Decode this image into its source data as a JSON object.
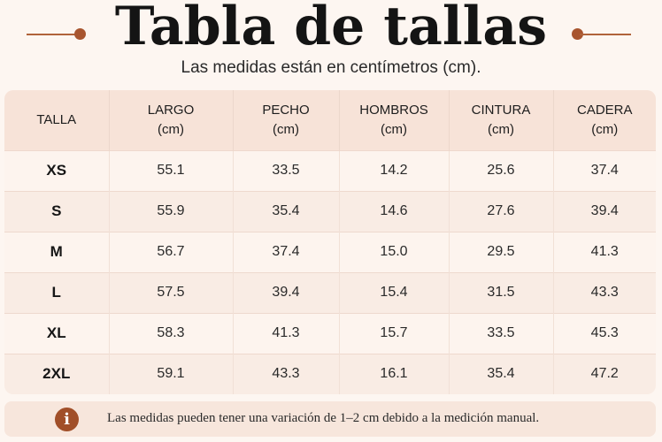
{
  "header": {
    "title": "Tabla de tallas",
    "subtitle": "Las medidas están en centímetros (cm)."
  },
  "table": {
    "columns": [
      {
        "label": "TALLA",
        "unit": ""
      },
      {
        "label": "LARGO",
        "unit": "(cm)"
      },
      {
        "label": "PECHO",
        "unit": "(cm)"
      },
      {
        "label": "HOMBROS",
        "unit": "(cm)"
      },
      {
        "label": "CINTURA",
        "unit": "(cm)"
      },
      {
        "label": "CADERA",
        "unit": "(cm)"
      }
    ],
    "rows": [
      [
        "XS",
        "55.1",
        "33.5",
        "14.2",
        "25.6",
        "37.4"
      ],
      [
        "S",
        "55.9",
        "35.4",
        "14.6",
        "27.6",
        "39.4"
      ],
      [
        "M",
        "56.7",
        "37.4",
        "15.0",
        "29.5",
        "41.3"
      ],
      [
        "L",
        "57.5",
        "39.4",
        "15.4",
        "31.5",
        "43.3"
      ],
      [
        "XL",
        "58.3",
        "41.3",
        "15.7",
        "33.5",
        "45.3"
      ],
      [
        "2XL",
        "59.1",
        "43.3",
        "16.1",
        "35.4",
        "47.2"
      ]
    ]
  },
  "note": {
    "icon": "info-icon",
    "icon_glyph": "i",
    "text": "Las medidas pueden tener una variación de 1–2 cm debido a la medición manual."
  },
  "colors": {
    "accent": "#a8552f",
    "background": "#fdf6f1",
    "header_row": "#f7e3d8"
  }
}
